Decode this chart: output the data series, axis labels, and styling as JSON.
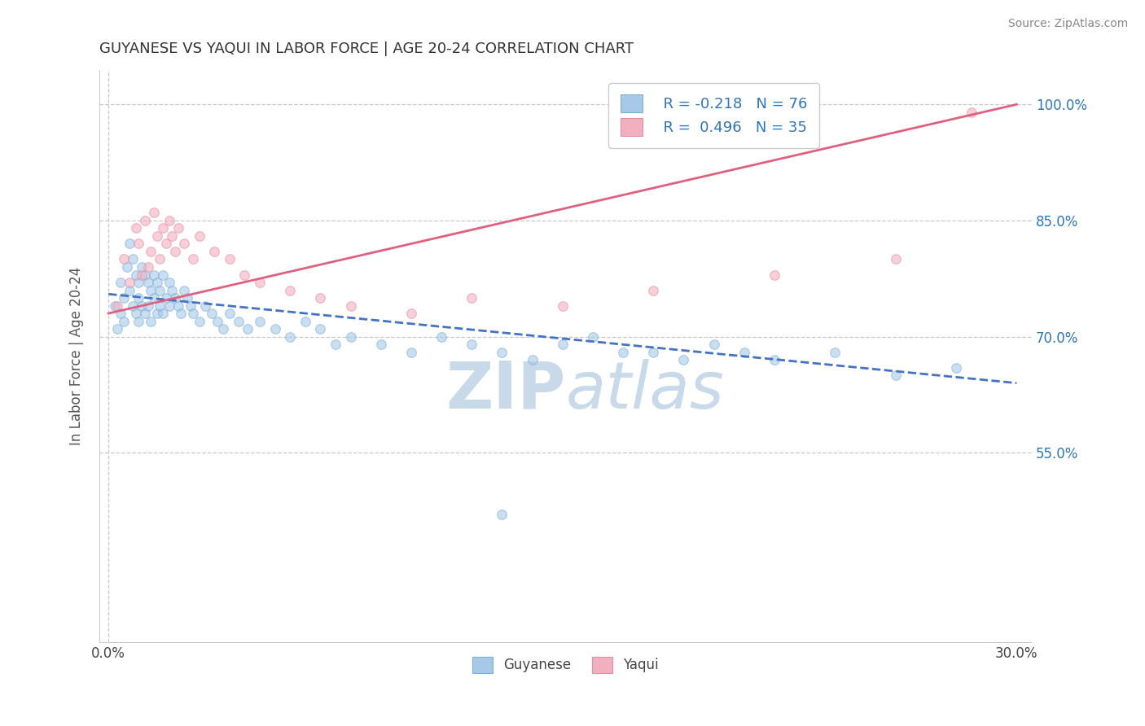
{
  "title": "GUYANESE VS YAQUI IN LABOR FORCE | AGE 20-24 CORRELATION CHART",
  "source_text": "Source: ZipAtlas.com",
  "ylabel": "In Labor Force | Age 20-24",
  "legend_labels": [
    "Guyanese",
    "Yaqui"
  ],
  "legend_r": [
    "R = -0.218",
    "R =  0.496"
  ],
  "legend_n": [
    "N = 76",
    "N = 35"
  ],
  "blue_color": "#a8c8e8",
  "pink_color": "#f0b0c0",
  "blue_edge_color": "#7bafd4",
  "pink_edge_color": "#e88aa0",
  "blue_line_color": "#4472c4",
  "pink_line_color": "#e06080",
  "title_color": "#333333",
  "legend_r_color": "#2e75b6",
  "background_color": "#ffffff",
  "grid_color": "#c8c8c8",
  "xlim": [
    -0.003,
    0.305
  ],
  "ylim": [
    0.305,
    1.045
  ],
  "xticks": [
    0.0,
    0.3
  ],
  "xtick_labels": [
    "0.0%",
    "30.0%"
  ],
  "ytick_positions": [
    0.55,
    0.7,
    0.85,
    1.0
  ],
  "ytick_labels": [
    "55.0%",
    "70.0%",
    "85.0%",
    "100.0%"
  ],
  "guyanese_x": [
    0.002,
    0.003,
    0.004,
    0.004,
    0.005,
    0.005,
    0.006,
    0.007,
    0.007,
    0.008,
    0.008,
    0.009,
    0.009,
    0.01,
    0.01,
    0.01,
    0.011,
    0.011,
    0.012,
    0.012,
    0.013,
    0.013,
    0.014,
    0.014,
    0.015,
    0.015,
    0.016,
    0.016,
    0.017,
    0.017,
    0.018,
    0.018,
    0.019,
    0.02,
    0.02,
    0.021,
    0.022,
    0.023,
    0.024,
    0.025,
    0.026,
    0.027,
    0.028,
    0.03,
    0.032,
    0.034,
    0.036,
    0.038,
    0.04,
    0.043,
    0.046,
    0.05,
    0.055,
    0.06,
    0.065,
    0.07,
    0.075,
    0.08,
    0.09,
    0.1,
    0.11,
    0.12,
    0.13,
    0.14,
    0.15,
    0.16,
    0.17,
    0.18,
    0.19,
    0.2,
    0.21,
    0.22,
    0.24,
    0.26,
    0.28,
    0.13
  ],
  "guyanese_y": [
    0.74,
    0.71,
    0.77,
    0.73,
    0.75,
    0.72,
    0.79,
    0.82,
    0.76,
    0.8,
    0.74,
    0.78,
    0.73,
    0.77,
    0.75,
    0.72,
    0.79,
    0.74,
    0.78,
    0.73,
    0.77,
    0.74,
    0.76,
    0.72,
    0.78,
    0.75,
    0.77,
    0.73,
    0.76,
    0.74,
    0.78,
    0.73,
    0.75,
    0.77,
    0.74,
    0.76,
    0.75,
    0.74,
    0.73,
    0.76,
    0.75,
    0.74,
    0.73,
    0.72,
    0.74,
    0.73,
    0.72,
    0.71,
    0.73,
    0.72,
    0.71,
    0.72,
    0.71,
    0.7,
    0.72,
    0.71,
    0.69,
    0.7,
    0.69,
    0.68,
    0.7,
    0.69,
    0.68,
    0.67,
    0.69,
    0.7,
    0.68,
    0.68,
    0.67,
    0.69,
    0.68,
    0.67,
    0.68,
    0.65,
    0.66,
    0.47
  ],
  "yaqui_x": [
    0.003,
    0.005,
    0.007,
    0.009,
    0.01,
    0.011,
    0.012,
    0.013,
    0.014,
    0.015,
    0.016,
    0.017,
    0.018,
    0.019,
    0.02,
    0.021,
    0.022,
    0.023,
    0.025,
    0.028,
    0.03,
    0.035,
    0.04,
    0.045,
    0.05,
    0.06,
    0.07,
    0.08,
    0.1,
    0.12,
    0.15,
    0.18,
    0.22,
    0.26,
    0.285
  ],
  "yaqui_y": [
    0.74,
    0.8,
    0.77,
    0.84,
    0.82,
    0.78,
    0.85,
    0.79,
    0.81,
    0.86,
    0.83,
    0.8,
    0.84,
    0.82,
    0.85,
    0.83,
    0.81,
    0.84,
    0.82,
    0.8,
    0.83,
    0.81,
    0.8,
    0.78,
    0.77,
    0.76,
    0.75,
    0.74,
    0.73,
    0.75,
    0.74,
    0.76,
    0.78,
    0.8,
    0.99
  ],
  "guyanese_trend_x": [
    0.0,
    0.3
  ],
  "guyanese_trend_y": [
    0.755,
    0.64
  ],
  "yaqui_trend_x": [
    0.0,
    0.3
  ],
  "yaqui_trend_y": [
    0.73,
    1.0
  ],
  "watermark_color": "#c8daea",
  "marker_size": 70,
  "alpha": 0.6
}
